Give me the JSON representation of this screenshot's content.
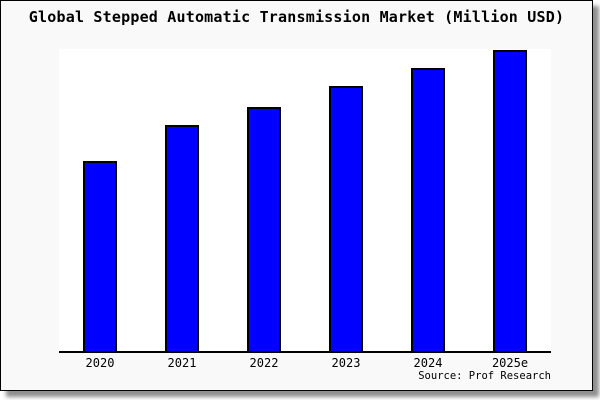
{
  "title": "Global Stepped Automatic Transmission Market (Million USD)",
  "source_note": "Source: Prof Research",
  "colors": {
    "bar_fill": "#0000ff",
    "bar_border": "#000000",
    "plot_background": "#ffffff",
    "frame_background": "#f9f9f9",
    "frame_border": "#000000",
    "axis_line": "#000000",
    "text": "#000000"
  },
  "chart_data": {
    "type": "bar",
    "title": "Global Stepped Automatic Transmission Market (Million USD)",
    "categories": [
      "2020",
      "2021",
      "2022",
      "2023",
      "2024",
      "2025e"
    ],
    "values": [
      63,
      75,
      81,
      88,
      94,
      100
    ],
    "value_scale_note": "y-axis unlabeled; values estimated from bar heights relative to 2025e = 100",
    "xlabel": "",
    "ylabel": "",
    "ylim": [
      0,
      100.3
    ],
    "grid": false,
    "legend": false,
    "bar_count": 6
  }
}
